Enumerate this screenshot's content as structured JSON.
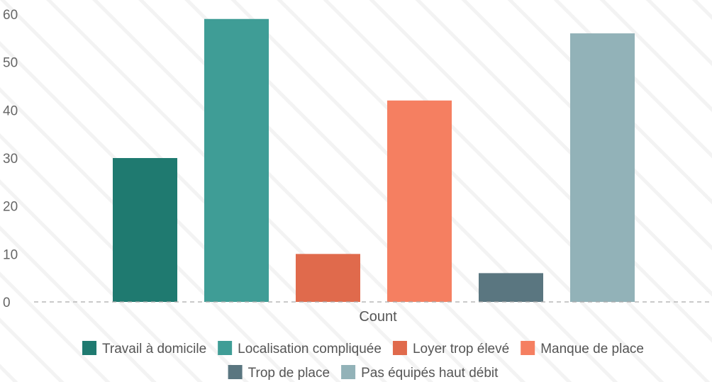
{
  "chart_data": {
    "type": "bar",
    "xlabel": "Count",
    "ylabel": "",
    "ylim": [
      0,
      60
    ],
    "yticks": [
      0,
      10,
      20,
      30,
      40,
      50,
      60
    ],
    "grid": false,
    "legend_position": "bottom",
    "series": [
      {
        "name": "Travail à domicile",
        "value": 30,
        "color": "#1f7a70"
      },
      {
        "name": "Localisation compliquée",
        "value": 59,
        "color": "#3f9d96"
      },
      {
        "name": "Loyer trop élevé",
        "value": 10,
        "color": "#e06a4c"
      },
      {
        "name": "Manque de place",
        "value": 42,
        "color": "#f57f61"
      },
      {
        "name": "Trop de place",
        "value": 6,
        "color": "#5a7680"
      },
      {
        "name": "Pas équipés haut débit",
        "value": 56,
        "color": "#92b2b8"
      }
    ]
  }
}
